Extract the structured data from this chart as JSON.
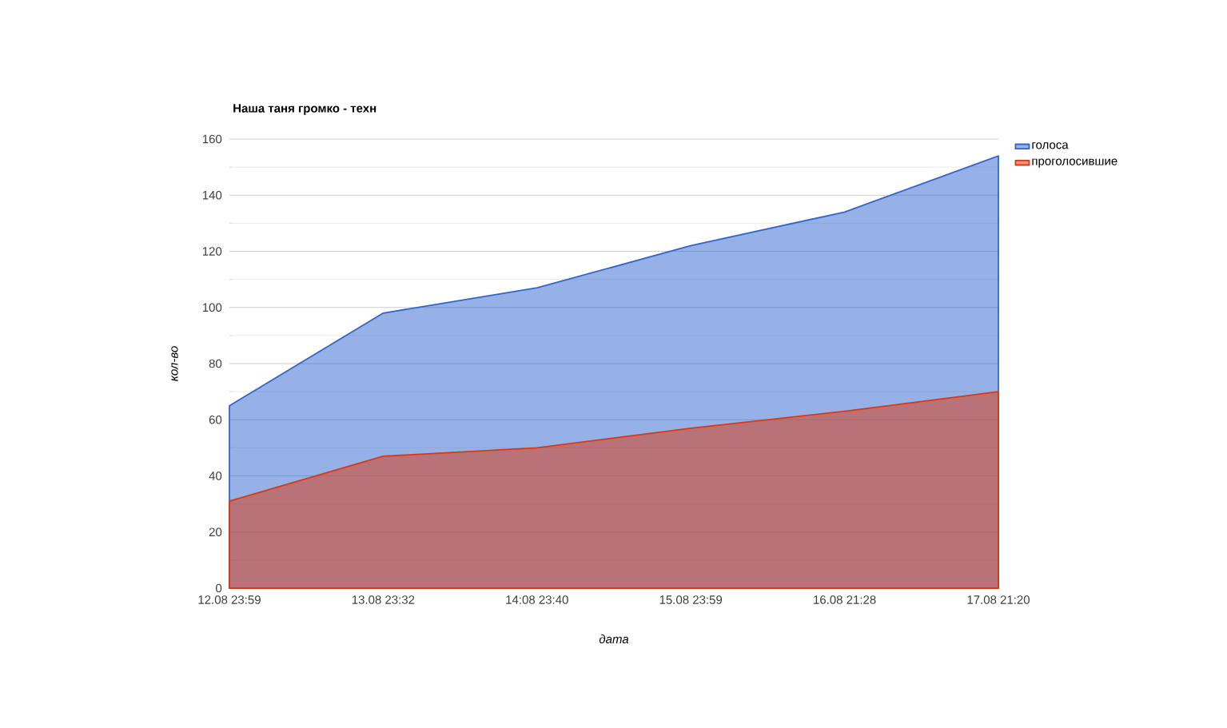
{
  "chart_data": {
    "type": "area",
    "title": "Наша таня громко - техн",
    "xlabel": "дата",
    "ylabel": "кол-во",
    "categories": [
      "12.08 23:59",
      "13.08 23:32",
      "14:08 23:40",
      "15.08 23:59",
      "16.08 21:28",
      "17.08 21:20"
    ],
    "series": [
      {
        "name": "голоса",
        "color": "#3366cc",
        "values": [
          65,
          98,
          107,
          122,
          134,
          154
        ]
      },
      {
        "name": "проголосившие",
        "color": "#dc3912",
        "values": [
          31,
          47,
          50,
          57,
          63,
          70
        ]
      }
    ],
    "ylim": [
      0,
      160
    ],
    "yticks": [
      0,
      20,
      40,
      60,
      80,
      100,
      120,
      140,
      160
    ],
    "grid": true,
    "legend": "top right"
  }
}
